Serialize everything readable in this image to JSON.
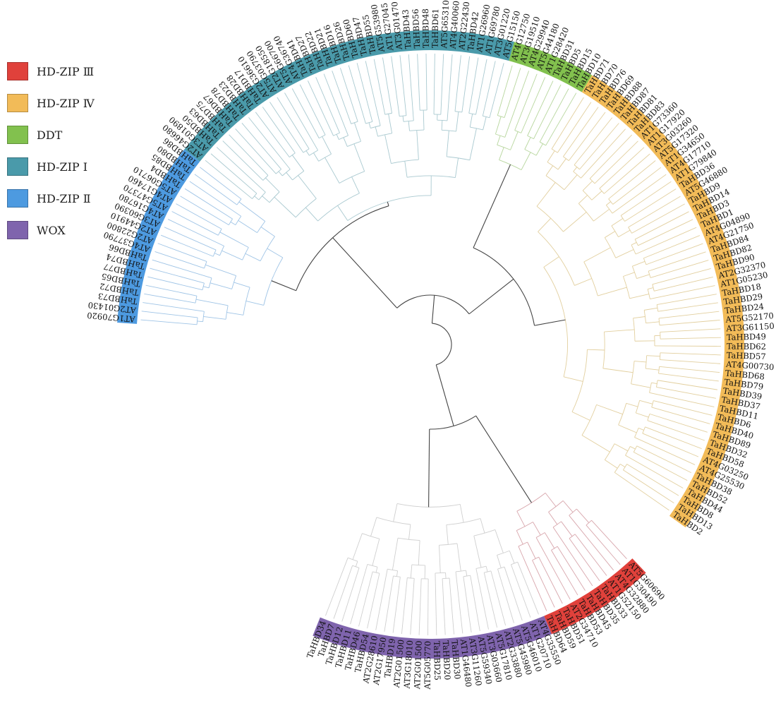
{
  "legend": [
    {
      "label": "HD-ZIP Ⅲ",
      "color": "#e0413b"
    },
    {
      "label": "HD-ZIP Ⅳ",
      "color": "#f2bb58"
    },
    {
      "label": "DDT",
      "color": "#82c14e"
    },
    {
      "label": "HD-ZIP Ⅰ",
      "color": "#4a9aaa"
    },
    {
      "label": "HD-ZIP Ⅱ",
      "color": "#4d9ae0"
    },
    {
      "label": "WOX",
      "color": "#7f64ad"
    }
  ],
  "clades": [
    {
      "name": "HD-ZIP Ⅱ",
      "color": "#4d9ae0",
      "branch_color": "#9fc4e6",
      "leaves": [
        "AT1G70920",
        "AT2G01430",
        "TaHBD73",
        "TaHBD72",
        "TaHBD65",
        "TaHBD77",
        "TaHBD74",
        "TaHBD66",
        "AT4G37790",
        "AT2G22800",
        "AT2G44910",
        "AT3G60390",
        "AT4G16780",
        "AT5G47370",
        "AT4G17460",
        "AT5G06710",
        "TaHBD4",
        "TaHBD85",
        "TaHBD80",
        "TaHBD86"
      ]
    },
    {
      "name": "HD-ZIP Ⅰ",
      "color": "#4a9aaa",
      "branch_color": "#a9c9d0",
      "leaves": [
        "AT2G46680",
        "AT3G01890",
        "TaHBD50",
        "TaHBD63",
        "TaHBD75",
        "TaHBD67",
        "TaHBD78",
        "TaHBD23",
        "TaHBD28",
        "TaHBD17",
        "AT2G36610",
        "AT5G03790",
        "AT2G18550",
        "AT5G66700",
        "AT4G36740",
        "TaHBD41",
        "TaHBD27",
        "TaHBD22",
        "TaHBD21",
        "TaHBD16",
        "TaHBD26",
        "TaHBD60",
        "TaHBD47",
        "TaHBD55",
        "AT5G53980",
        "AT1G27045",
        "AT3G01470",
        "TaHBD43",
        "TaHBD56",
        "TaHBD48",
        "TaHBD61",
        "AT5G65310",
        "AT4G40060",
        "AT2G22430",
        "TaHBD42",
        "AT1G26960",
        "AT1G69780",
        "AT3G01220",
        "AT5G15150"
      ]
    },
    {
      "name": "DDT",
      "color": "#82c14e",
      "branch_color": "#b7d69d",
      "leaves": [
        "AT4G12750",
        "AT3G19510",
        "AT4G29940",
        "AT5G44180",
        "AT1G28420",
        "TaHBD31",
        "TaHBD5",
        "TaHBD15",
        "TaHBD10"
      ]
    },
    {
      "name": "HD-ZIP Ⅳ",
      "color": "#f2bb58",
      "branch_color": "#e2cf9e",
      "leaves": [
        "TaHBD71",
        "TaHBD70",
        "TaHBD76",
        "TaHBD69",
        "TaHBD88",
        "TaHBD87",
        "TaHBD81",
        "TaHBD83",
        "AT1G73360",
        "AT1G17920",
        "AT3G03260",
        "AT5G17320",
        "AT1G34650",
        "AT4G17710",
        "AT1G79840",
        "TaHBD36",
        "AT5G46880",
        "TaHBD9",
        "TaHBD14",
        "TaHBD3",
        "TaHBD1",
        "AT4G04890",
        "AT4G21750",
        "TaHBD84",
        "TaHBD82",
        "TaHBD90",
        "AT2G32370",
        "AT1G05230",
        "TaHBD18",
        "TaHBD29",
        "TaHBD24",
        "AT5G52170",
        "AT3G61150",
        "TaHBD49",
        "TaHBD62",
        "TaHBD57",
        "AT4G00730",
        "TaHBD68",
        "TaHBD79",
        "TaHBD39",
        "TaHBD37",
        "TaHBD11",
        "TaHBD6",
        "TaHBD40",
        "TaHBD89",
        "TaHBD32",
        "TaHBD58",
        "AT4G03250",
        "AT4G25530",
        "TaHBD38",
        "TaHBD52",
        "TaHBD44",
        "TaHBD8",
        "TaHBD13",
        "TaHBD2"
      ]
    },
    {
      "name": "HD-ZIP Ⅲ",
      "color": "#e0413b",
      "branch_color": "#d8a6ac",
      "leaves": [
        "AT5G60690",
        "AT1G30490",
        "AT4G32880",
        "AT1G52150",
        "TaHBD33",
        "TaHBD35",
        "TaHBD45",
        "TaHBD53",
        "AT2G34710",
        "TaHBD51",
        "TaHBD59",
        "TaHBD64"
      ]
    },
    {
      "name": "WOX",
      "color": "#7f64ad",
      "branch_color": "#cfcfcf",
      "leaves": [
        "AT4G35550",
        "AT1G20710",
        "AT5G46010",
        "AT5G45980",
        "AT2G33880",
        "AT5G17810",
        "AT3G03660",
        "AT5G59340",
        "AT3G11260",
        "AT1G46480",
        "TaHBD30",
        "TaHBD20",
        "TaHBD25",
        "AT5G05770",
        "AT2G01500",
        "AT3G18010",
        "AT2G01500",
        "TaHBD19",
        "AT2G17950",
        "AT2G28610",
        "TaHBD54",
        "TaHBD46",
        "TaHBD11",
        "TaHBD12",
        "TaHBD7",
        "TaHBD34"
      ]
    }
  ]
}
